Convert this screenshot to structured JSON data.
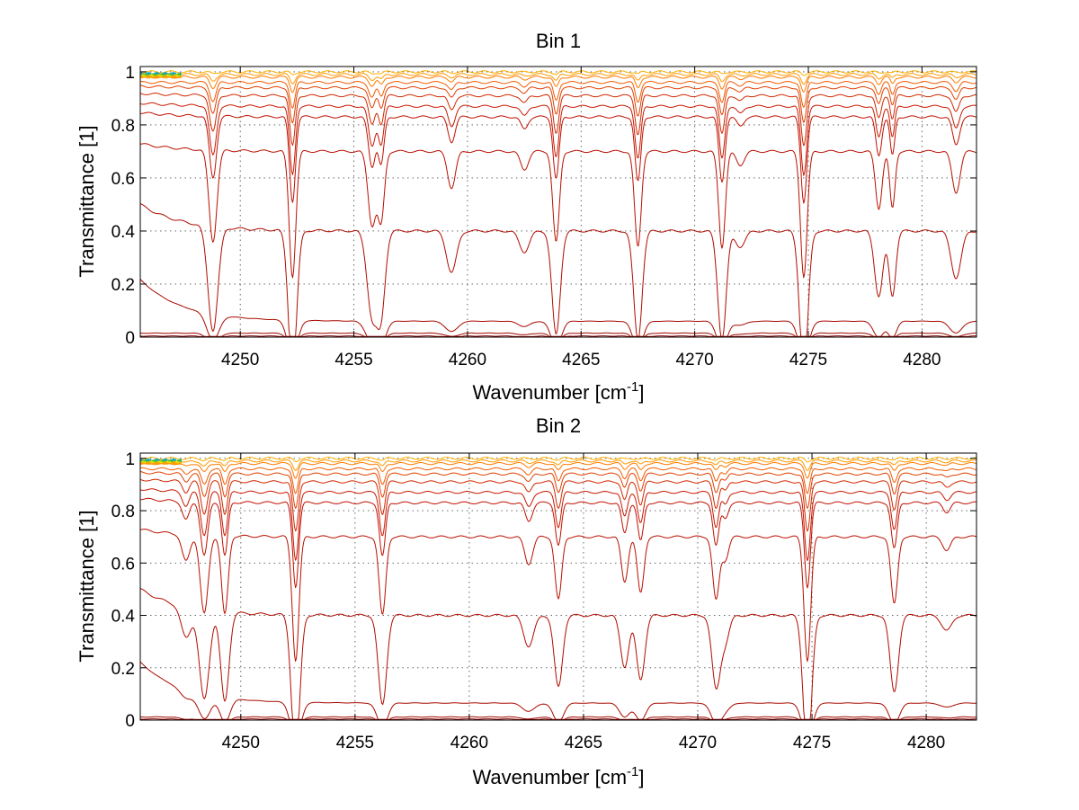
{
  "chart_data": [
    {
      "type": "line",
      "title": "Bin 1",
      "xlabel": "Wavenumber [cm",
      "xlabel_sup": "-1",
      "xlabel_end": "]",
      "ylabel": "Transmittance [1]",
      "xlim": [
        4245.6,
        4282.4
      ],
      "ylim": [
        0,
        1.02
      ],
      "xticks": [
        4250,
        4255,
        4260,
        4265,
        4270,
        4275,
        4280
      ],
      "yticks": [
        0,
        0.2,
        0.4,
        0.6,
        0.8,
        1
      ],
      "xtick_labels": [
        "4250",
        "4255",
        "4260",
        "4265",
        "4270",
        "4275",
        "4280"
      ],
      "ytick_labels": [
        "0",
        "0.2",
        "0.4",
        "0.6",
        "0.8",
        "1"
      ],
      "grid": true,
      "line_centers": [
        4248.8,
        4252.3,
        4255.8,
        4256.2,
        4259.3,
        4262.5,
        4263.9,
        4267.5,
        4271.2,
        4272.0,
        4274.8,
        4278.1,
        4278.7,
        4281.5
      ],
      "line_depths": [
        0.4,
        0.55,
        0.32,
        0.3,
        0.16,
        0.08,
        0.4,
        0.42,
        0.42,
        0.06,
        0.55,
        0.25,
        0.25,
        0.18
      ],
      "line_widths": [
        0.18,
        0.15,
        0.18,
        0.15,
        0.18,
        0.18,
        0.15,
        0.15,
        0.15,
        0.18,
        0.15,
        0.15,
        0.12,
        0.18
      ],
      "series_baselines": [
        1.0,
        0.99,
        0.98,
        0.96,
        0.94,
        0.91,
        0.87,
        0.83,
        0.7,
        0.4,
        0.06,
        0.015,
        0.004
      ],
      "series_colors": [
        "#FFB000",
        "#FF9A00",
        "#FF7A00",
        "#F25A00",
        "#E04000",
        "#D02800",
        "#C81800",
        "#C01000",
        "#B81000",
        "#B00C00",
        "#A80A00",
        "#A00800",
        "#8A0000"
      ],
      "accent_colors": [
        "#00A0C8",
        "#40C040",
        "#E0E000",
        "#FF9A00"
      ]
    },
    {
      "type": "line",
      "title": "Bin 2",
      "xlabel": "Wavenumber [cm",
      "xlabel_sup": "-1",
      "xlabel_end": "]",
      "ylabel": "Transmittance [1]",
      "xlim": [
        4245.6,
        4282.2
      ],
      "ylim": [
        0,
        1.02
      ],
      "xticks": [
        4250,
        4255,
        4260,
        4265,
        4270,
        4275,
        4280
      ],
      "yticks": [
        0,
        0.2,
        0.4,
        0.6,
        0.8,
        1
      ],
      "xtick_labels": [
        "4250",
        "4255",
        "4260",
        "4265",
        "4270",
        "4275",
        "4280"
      ],
      "ytick_labels": [
        "0",
        "0.2",
        "0.4",
        "0.6",
        "0.8",
        "1"
      ],
      "grid": true,
      "line_centers": [
        4247.6,
        4248.4,
        4249.3,
        4252.4,
        4256.2,
        4262.6,
        4263.9,
        4266.8,
        4267.5,
        4270.8,
        4271.2,
        4274.8,
        4278.6,
        4280.9
      ],
      "line_depths": [
        0.12,
        0.35,
        0.35,
        0.55,
        0.35,
        0.12,
        0.28,
        0.2,
        0.25,
        0.28,
        0.1,
        0.55,
        0.3,
        0.06
      ],
      "line_widths": [
        0.18,
        0.18,
        0.15,
        0.15,
        0.15,
        0.18,
        0.15,
        0.15,
        0.15,
        0.15,
        0.15,
        0.15,
        0.15,
        0.18
      ],
      "series_baselines": [
        1.0,
        0.99,
        0.98,
        0.96,
        0.94,
        0.91,
        0.87,
        0.83,
        0.7,
        0.4,
        0.065,
        0.012,
        0.004
      ],
      "series_colors": [
        "#FFB000",
        "#FF9A00",
        "#FF7A00",
        "#F25A00",
        "#E04000",
        "#D02800",
        "#C81800",
        "#C01000",
        "#B81000",
        "#B00C00",
        "#A80A00",
        "#A00800",
        "#8A0000"
      ],
      "accent_colors": [
        "#00A0C8",
        "#40C040",
        "#E0E000",
        "#FF9A00"
      ]
    }
  ]
}
